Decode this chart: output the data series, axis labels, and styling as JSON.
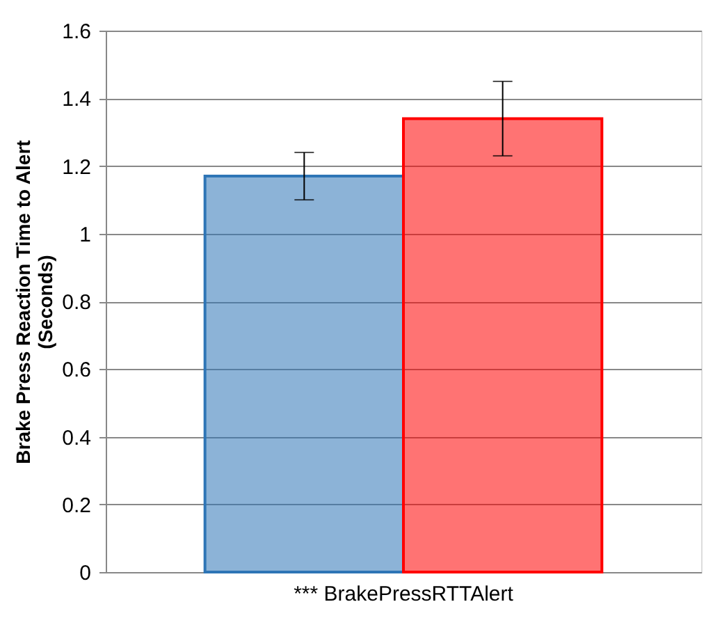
{
  "chart_data": {
    "type": "bar",
    "ylabel": "Brake Press Reaction Time to Alert\n(Seconds)",
    "categories": [
      "*** BrakePressRTTAlert"
    ],
    "series": [
      {
        "color": "#2e75b6",
        "values": [
          1.17
        ],
        "errors": [
          [
            1.1,
            1.24
          ]
        ]
      },
      {
        "color": "#ff0000",
        "values": [
          1.34
        ],
        "errors": [
          [
            1.23,
            1.45
          ]
        ]
      }
    ],
    "ylim": [
      0,
      1.6
    ],
    "yticks": [
      0,
      0.2,
      0.4,
      0.6,
      0.8,
      1,
      1.2,
      1.4,
      1.6
    ],
    "grid": "y",
    "legend": false
  }
}
